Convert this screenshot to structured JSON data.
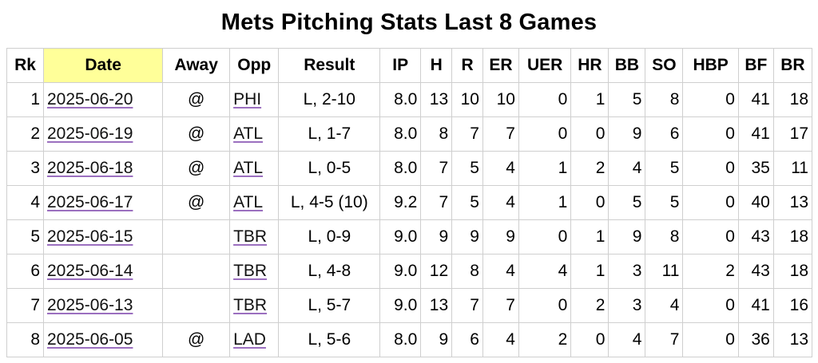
{
  "title": "Mets Pitching Stats Last 8 Games",
  "columns": [
    "Rk",
    "Date",
    "Away",
    "Opp",
    "Result",
    "IP",
    "H",
    "R",
    "ER",
    "UER",
    "HR",
    "BB",
    "SO",
    "HBP",
    "BF",
    "BR"
  ],
  "sorted_column": "Date",
  "rows": [
    {
      "rk": "1",
      "date": "2025-06-20",
      "away": "@",
      "opp": "PHI",
      "result": "L, 2-10",
      "ip": "8.0",
      "h": "13",
      "r": "10",
      "er": "10",
      "uer": "0",
      "hr": "1",
      "bb": "5",
      "so": "8",
      "hbp": "0",
      "bf": "41",
      "br": "18"
    },
    {
      "rk": "2",
      "date": "2025-06-19",
      "away": "@",
      "opp": "ATL",
      "result": "L, 1-7",
      "ip": "8.0",
      "h": "8",
      "r": "7",
      "er": "7",
      "uer": "0",
      "hr": "0",
      "bb": "9",
      "so": "6",
      "hbp": "0",
      "bf": "41",
      "br": "17"
    },
    {
      "rk": "3",
      "date": "2025-06-18",
      "away": "@",
      "opp": "ATL",
      "result": "L, 0-5",
      "ip": "8.0",
      "h": "7",
      "r": "5",
      "er": "4",
      "uer": "1",
      "hr": "2",
      "bb": "4",
      "so": "5",
      "hbp": "0",
      "bf": "35",
      "br": "11"
    },
    {
      "rk": "4",
      "date": "2025-06-17",
      "away": "@",
      "opp": "ATL",
      "result": "L, 4-5 (10)",
      "ip": "9.2",
      "h": "7",
      "r": "5",
      "er": "4",
      "uer": "1",
      "hr": "0",
      "bb": "5",
      "so": "5",
      "hbp": "0",
      "bf": "40",
      "br": "13"
    },
    {
      "rk": "5",
      "date": "2025-06-15",
      "away": "",
      "opp": "TBR",
      "result": "L, 0-9",
      "ip": "9.0",
      "h": "9",
      "r": "9",
      "er": "9",
      "uer": "0",
      "hr": "1",
      "bb": "9",
      "so": "8",
      "hbp": "0",
      "bf": "43",
      "br": "18"
    },
    {
      "rk": "6",
      "date": "2025-06-14",
      "away": "",
      "opp": "TBR",
      "result": "L, 4-8",
      "ip": "9.0",
      "h": "12",
      "r": "8",
      "er": "4",
      "uer": "4",
      "hr": "1",
      "bb": "3",
      "so": "11",
      "hbp": "2",
      "bf": "43",
      "br": "18"
    },
    {
      "rk": "7",
      "date": "2025-06-13",
      "away": "",
      "opp": "TBR",
      "result": "L, 5-7",
      "ip": "9.0",
      "h": "13",
      "r": "7",
      "er": "7",
      "uer": "0",
      "hr": "2",
      "bb": "3",
      "so": "4",
      "hbp": "0",
      "bf": "41",
      "br": "16"
    },
    {
      "rk": "8",
      "date": "2025-06-05",
      "away": "@",
      "opp": "LAD",
      "result": "L, 5-6",
      "ip": "8.0",
      "h": "9",
      "r": "6",
      "er": "4",
      "uer": "2",
      "hr": "0",
      "bb": "4",
      "so": "7",
      "hbp": "0",
      "bf": "36",
      "br": "13"
    }
  ]
}
